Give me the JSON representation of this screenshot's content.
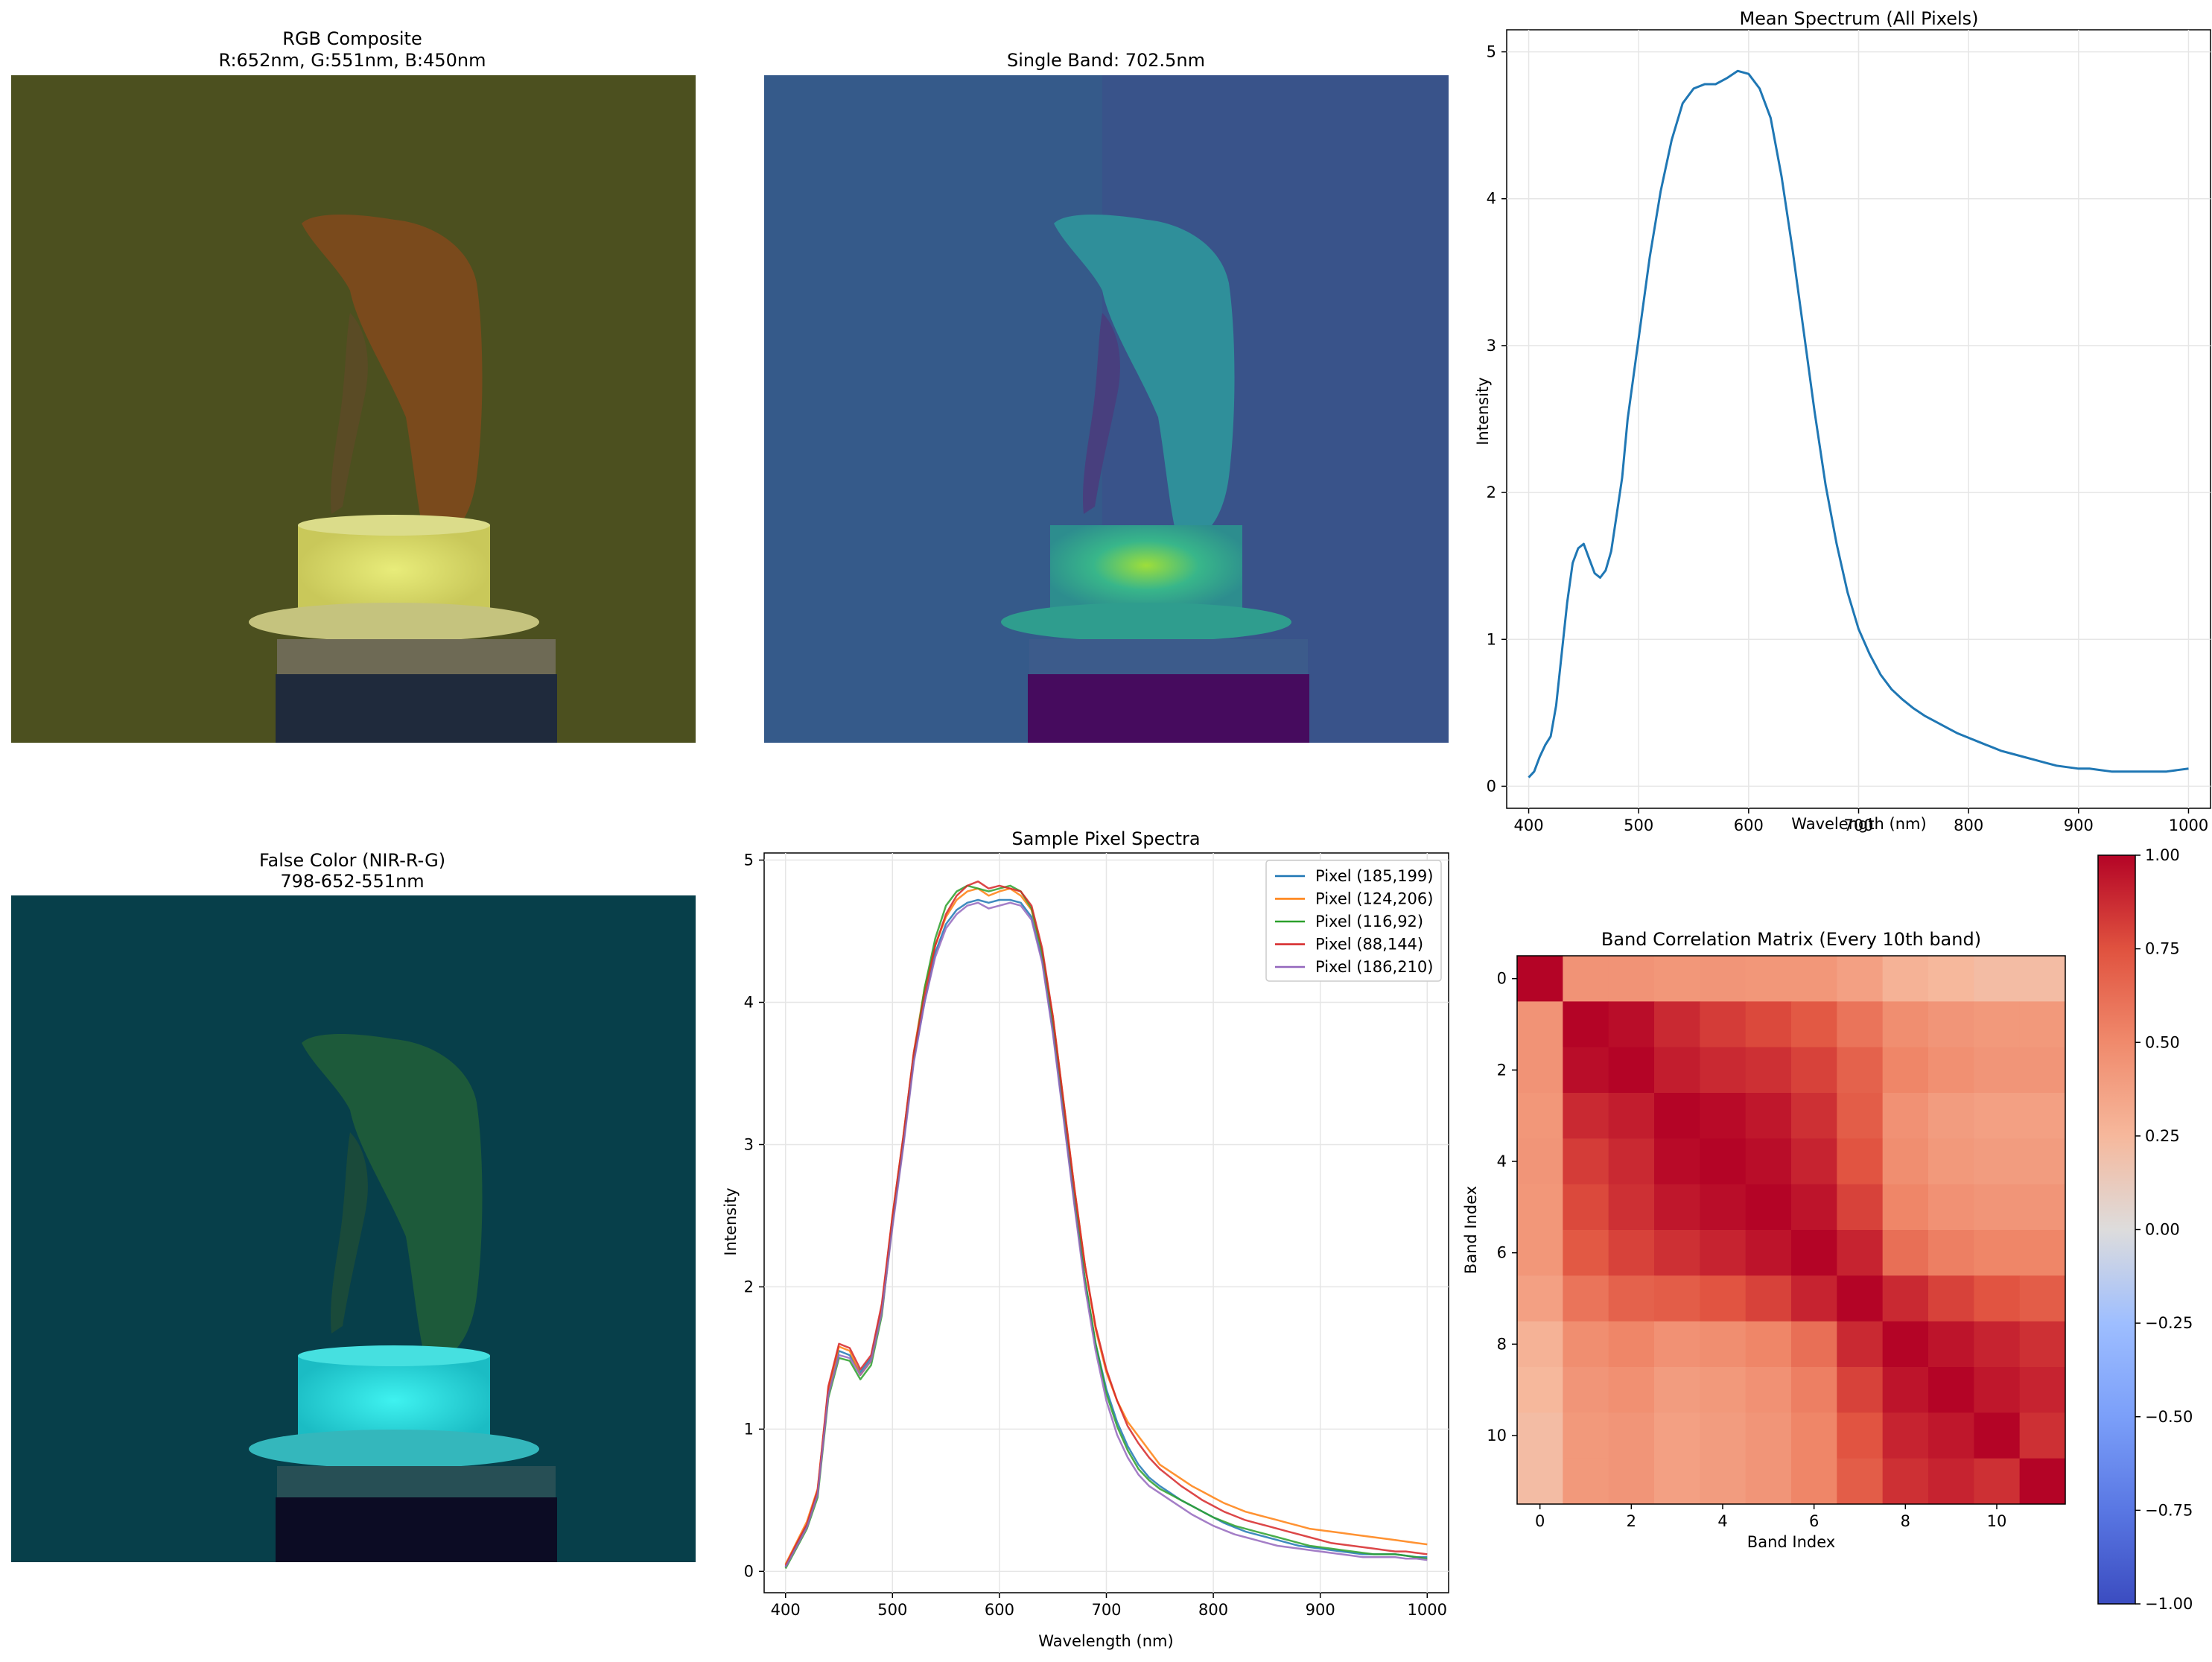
{
  "colors": {
    "spectrum_line": "#1f77b4",
    "series": [
      "#1f77b4",
      "#ff7f0e",
      "#2ca02c",
      "#d62728",
      "#9467bd"
    ],
    "grid": "#e6e6e6",
    "axes": "#000000",
    "rgb_background": "#4a4e1e",
    "single_band_background": "#355a8a",
    "false_color_background": "#073f4a",
    "colormap": "coolwarm"
  },
  "panels": {
    "rgb": {
      "title_line1": "RGB Composite",
      "title_line2": "R:652nm, G:551nm, B:450nm"
    },
    "single_band": {
      "title": "Single Band: 702.5nm"
    },
    "false_color": {
      "title_line1": "False Color (NIR-R-G)",
      "title_line2": "798-652-551nm"
    }
  },
  "chart_data": [
    {
      "type": "line",
      "title": "Mean Spectrum (All Pixels)",
      "xlabel": "Wavelength (nm)",
      "ylabel": "Intensity",
      "xlim": [
        380,
        1020
      ],
      "ylim": [
        -0.15,
        5.15
      ],
      "xticks": [
        400,
        500,
        600,
        700,
        800,
        900,
        1000
      ],
      "yticks": [
        0,
        1,
        2,
        3,
        4,
        5
      ],
      "grid": true,
      "series": [
        {
          "x": [
            400,
            405,
            410,
            415,
            420,
            425,
            430,
            435,
            440,
            445,
            450,
            455,
            460,
            465,
            470,
            475,
            480,
            485,
            490,
            500,
            510,
            520,
            530,
            540,
            550,
            560,
            570,
            580,
            590,
            600,
            610,
            620,
            630,
            640,
            650,
            660,
            670,
            680,
            690,
            700,
            710,
            720,
            730,
            740,
            750,
            760,
            770,
            780,
            790,
            800,
            810,
            820,
            830,
            840,
            850,
            860,
            870,
            880,
            890,
            900,
            910,
            920,
            930,
            940,
            950,
            960,
            970,
            980,
            990,
            1000
          ],
          "y": [
            0.06,
            0.1,
            0.2,
            0.28,
            0.34,
            0.55,
            0.9,
            1.25,
            1.52,
            1.62,
            1.65,
            1.55,
            1.45,
            1.42,
            1.47,
            1.6,
            1.85,
            2.1,
            2.5,
            3.05,
            3.6,
            4.05,
            4.4,
            4.65,
            4.75,
            4.78,
            4.78,
            4.82,
            4.87,
            4.85,
            4.75,
            4.55,
            4.15,
            3.65,
            3.1,
            2.55,
            2.05,
            1.65,
            1.32,
            1.07,
            0.9,
            0.76,
            0.66,
            0.59,
            0.53,
            0.48,
            0.44,
            0.4,
            0.36,
            0.33,
            0.3,
            0.27,
            0.24,
            0.22,
            0.2,
            0.18,
            0.16,
            0.14,
            0.13,
            0.12,
            0.12,
            0.11,
            0.1,
            0.1,
            0.1,
            0.1,
            0.1,
            0.1,
            0.11,
            0.12
          ]
        }
      ]
    },
    {
      "type": "line",
      "title": "Sample Pixel Spectra",
      "xlabel": "Wavelength (nm)",
      "ylabel": "Intensity",
      "xlim": [
        380,
        1020
      ],
      "ylim": [
        -0.15,
        5.05
      ],
      "xticks": [
        400,
        500,
        600,
        700,
        800,
        900,
        1000
      ],
      "yticks": [
        0,
        1,
        2,
        3,
        4,
        5
      ],
      "grid": true,
      "legend": "top-right",
      "x": [
        400,
        410,
        420,
        430,
        440,
        450,
        460,
        470,
        480,
        490,
        500,
        510,
        520,
        530,
        540,
        550,
        560,
        570,
        580,
        590,
        600,
        610,
        620,
        630,
        640,
        650,
        660,
        670,
        680,
        690,
        700,
        710,
        720,
        730,
        740,
        750,
        760,
        770,
        780,
        790,
        800,
        810,
        820,
        830,
        840,
        850,
        860,
        870,
        880,
        890,
        900,
        910,
        920,
        930,
        940,
        950,
        960,
        970,
        980,
        990,
        1000
      ],
      "series": [
        {
          "name": "Pixel (185,199)",
          "values": [
            0.03,
            0.18,
            0.32,
            0.55,
            1.25,
            1.55,
            1.52,
            1.4,
            1.5,
            1.85,
            2.45,
            3.0,
            3.6,
            4.0,
            4.35,
            4.55,
            4.65,
            4.7,
            4.72,
            4.7,
            4.72,
            4.72,
            4.7,
            4.6,
            4.3,
            3.8,
            3.2,
            2.6,
            2.05,
            1.6,
            1.28,
            1.05,
            0.88,
            0.75,
            0.66,
            0.6,
            0.55,
            0.5,
            0.46,
            0.42,
            0.38,
            0.34,
            0.31,
            0.28,
            0.26,
            0.24,
            0.22,
            0.2,
            0.18,
            0.17,
            0.16,
            0.15,
            0.14,
            0.13,
            0.12,
            0.12,
            0.12,
            0.12,
            0.11,
            0.1,
            0.1
          ]
        },
        {
          "name": "Pixel (124,206)",
          "values": [
            0.05,
            0.2,
            0.35,
            0.58,
            1.28,
            1.58,
            1.55,
            1.38,
            1.48,
            1.85,
            2.5,
            3.05,
            3.65,
            4.1,
            4.4,
            4.6,
            4.72,
            4.78,
            4.8,
            4.75,
            4.78,
            4.8,
            4.75,
            4.65,
            4.35,
            3.9,
            3.3,
            2.7,
            2.15,
            1.7,
            1.4,
            1.2,
            1.05,
            0.95,
            0.85,
            0.75,
            0.7,
            0.65,
            0.6,
            0.56,
            0.52,
            0.48,
            0.45,
            0.42,
            0.4,
            0.38,
            0.36,
            0.34,
            0.32,
            0.3,
            0.29,
            0.28,
            0.27,
            0.26,
            0.25,
            0.24,
            0.23,
            0.22,
            0.21,
            0.2,
            0.19
          ]
        },
        {
          "name": "Pixel (116,92)",
          "values": [
            0.02,
            0.16,
            0.3,
            0.52,
            1.22,
            1.5,
            1.48,
            1.35,
            1.45,
            1.8,
            2.45,
            3.02,
            3.62,
            4.1,
            4.45,
            4.68,
            4.78,
            4.82,
            4.8,
            4.78,
            4.8,
            4.82,
            4.78,
            4.66,
            4.35,
            3.85,
            3.25,
            2.62,
            2.05,
            1.6,
            1.25,
            1.02,
            0.85,
            0.72,
            0.64,
            0.58,
            0.54,
            0.5,
            0.46,
            0.42,
            0.38,
            0.35,
            0.32,
            0.3,
            0.28,
            0.26,
            0.24,
            0.22,
            0.2,
            0.18,
            0.17,
            0.16,
            0.15,
            0.14,
            0.13,
            0.12,
            0.12,
            0.12,
            0.11,
            0.1,
            0.09
          ]
        },
        {
          "name": "Pixel (88,144)",
          "values": [
            0.04,
            0.19,
            0.33,
            0.57,
            1.3,
            1.6,
            1.57,
            1.42,
            1.52,
            1.88,
            2.5,
            3.05,
            3.65,
            4.05,
            4.4,
            4.62,
            4.75,
            4.82,
            4.85,
            4.8,
            4.82,
            4.8,
            4.78,
            4.68,
            4.38,
            3.9,
            3.3,
            2.7,
            2.15,
            1.72,
            1.42,
            1.2,
            1.02,
            0.9,
            0.8,
            0.72,
            0.66,
            0.6,
            0.55,
            0.5,
            0.46,
            0.42,
            0.39,
            0.36,
            0.34,
            0.32,
            0.3,
            0.28,
            0.26,
            0.24,
            0.22,
            0.2,
            0.19,
            0.18,
            0.17,
            0.16,
            0.15,
            0.14,
            0.14,
            0.13,
            0.12
          ]
        },
        {
          "name": "Pixel (186,210)",
          "values": [
            0.03,
            0.17,
            0.31,
            0.54,
            1.24,
            1.52,
            1.5,
            1.38,
            1.48,
            1.82,
            2.42,
            2.98,
            3.58,
            4.0,
            4.32,
            4.52,
            4.62,
            4.68,
            4.7,
            4.66,
            4.68,
            4.7,
            4.68,
            4.58,
            4.28,
            3.78,
            3.18,
            2.58,
            2.0,
            1.55,
            1.2,
            0.96,
            0.8,
            0.68,
            0.6,
            0.55,
            0.5,
            0.45,
            0.4,
            0.36,
            0.32,
            0.29,
            0.26,
            0.24,
            0.22,
            0.2,
            0.18,
            0.17,
            0.16,
            0.15,
            0.14,
            0.13,
            0.12,
            0.11,
            0.1,
            0.1,
            0.1,
            0.1,
            0.09,
            0.09,
            0.08
          ]
        }
      ]
    },
    {
      "type": "heatmap",
      "title": "Band Correlation Matrix (Every 10th band)",
      "xlabel": "Band Index",
      "ylabel": "Band Index",
      "xticks": [
        0,
        2,
        4,
        6,
        8,
        10
      ],
      "yticks": [
        0,
        2,
        4,
        6,
        8,
        10
      ],
      "colorbar_ticks": [
        -1.0,
        -0.75,
        -0.5,
        -0.25,
        0.0,
        0.25,
        0.5,
        0.75,
        1.0
      ],
      "colorbar_range": [
        -1.0,
        1.0
      ],
      "matrix": [
        [
          1.0,
          0.45,
          0.45,
          0.43,
          0.44,
          0.43,
          0.43,
          0.38,
          0.28,
          0.25,
          0.22,
          0.22
        ],
        [
          0.45,
          1.0,
          0.97,
          0.88,
          0.82,
          0.78,
          0.72,
          0.6,
          0.48,
          0.44,
          0.42,
          0.42
        ],
        [
          0.45,
          0.97,
          1.0,
          0.92,
          0.88,
          0.86,
          0.8,
          0.68,
          0.52,
          0.47,
          0.44,
          0.44
        ],
        [
          0.43,
          0.88,
          0.92,
          1.0,
          0.98,
          0.94,
          0.86,
          0.7,
          0.46,
          0.4,
          0.38,
          0.38
        ],
        [
          0.44,
          0.82,
          0.88,
          0.98,
          1.0,
          0.97,
          0.9,
          0.74,
          0.48,
          0.42,
          0.4,
          0.4
        ],
        [
          0.43,
          0.78,
          0.86,
          0.94,
          0.97,
          1.0,
          0.95,
          0.8,
          0.52,
          0.46,
          0.44,
          0.44
        ],
        [
          0.43,
          0.72,
          0.8,
          0.86,
          0.9,
          0.95,
          1.0,
          0.9,
          0.62,
          0.55,
          0.52,
          0.52
        ],
        [
          0.38,
          0.6,
          0.68,
          0.7,
          0.74,
          0.8,
          0.9,
          1.0,
          0.88,
          0.8,
          0.74,
          0.7
        ],
        [
          0.28,
          0.48,
          0.52,
          0.46,
          0.48,
          0.52,
          0.62,
          0.88,
          1.0,
          0.95,
          0.9,
          0.86
        ],
        [
          0.25,
          0.44,
          0.47,
          0.4,
          0.42,
          0.46,
          0.55,
          0.8,
          0.95,
          1.0,
          0.94,
          0.9
        ],
        [
          0.22,
          0.42,
          0.44,
          0.38,
          0.4,
          0.44,
          0.52,
          0.74,
          0.9,
          0.94,
          1.0,
          0.86
        ],
        [
          0.22,
          0.42,
          0.44,
          0.38,
          0.4,
          0.44,
          0.52,
          0.7,
          0.86,
          0.9,
          0.86,
          1.0
        ]
      ]
    }
  ]
}
